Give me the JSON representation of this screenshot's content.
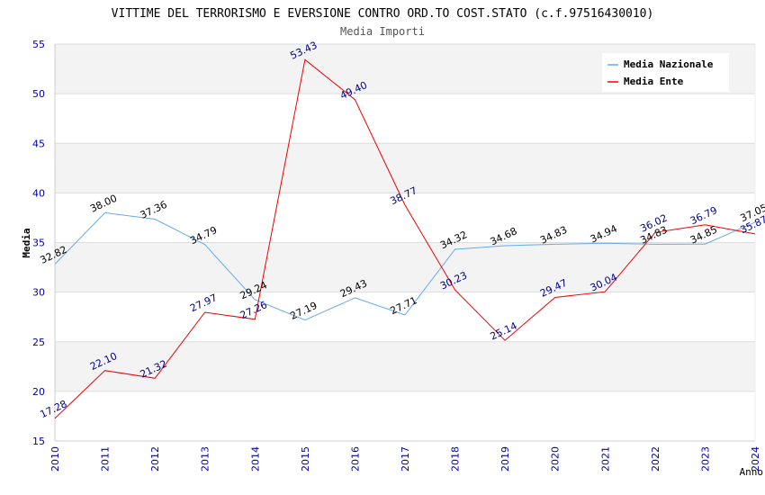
{
  "chart_data": {
    "type": "line",
    "title": "VITTIME DEL TERRORISMO E EVERSIONE CONTRO ORD.TO COST.STATO (c.f.97516430010)",
    "subtitle": "Media Importi",
    "xlabel": "Anno",
    "ylabel": "Media",
    "x": [
      "2010",
      "2011",
      "2012",
      "2013",
      "2014",
      "2015",
      "2016",
      "2017",
      "2018",
      "2019",
      "2020",
      "2021",
      "2022",
      "2023",
      "2024"
    ],
    "ylim": [
      15,
      55
    ],
    "yticks": [
      "15",
      "20",
      "25",
      "30",
      "35",
      "40",
      "45",
      "50",
      "55"
    ],
    "grid": true,
    "legend_position": "top-right",
    "series": [
      {
        "name": "Media Nazionale",
        "color": "#66aaee",
        "label_color": "#000000",
        "values": [
          32.82,
          38.0,
          37.36,
          34.79,
          29.24,
          27.19,
          29.43,
          27.71,
          34.32,
          34.68,
          34.83,
          34.94,
          34.83,
          34.85,
          37.05
        ],
        "labels": [
          "32.82",
          "38.00",
          "37.36",
          "34.79",
          "29.24",
          "27.19",
          "29.43",
          "27.71",
          "34.32",
          "34.68",
          "34.83",
          "34.94",
          "34.83",
          "34.85",
          "37.05"
        ]
      },
      {
        "name": "Media Ente",
        "color": "#ee0000",
        "label_color": "#000080",
        "values": [
          17.28,
          22.1,
          21.32,
          27.97,
          27.26,
          53.43,
          49.4,
          38.77,
          30.23,
          25.14,
          29.47,
          30.04,
          36.02,
          36.79,
          35.87
        ],
        "labels": [
          "17.28",
          "22.10",
          "21.32",
          "27.97",
          "27.26",
          "53.43",
          "49.40",
          "38.77",
          "30.23",
          "25.14",
          "29.47",
          "30.04",
          "36.02",
          "36.79",
          "35.87"
        ]
      }
    ]
  }
}
